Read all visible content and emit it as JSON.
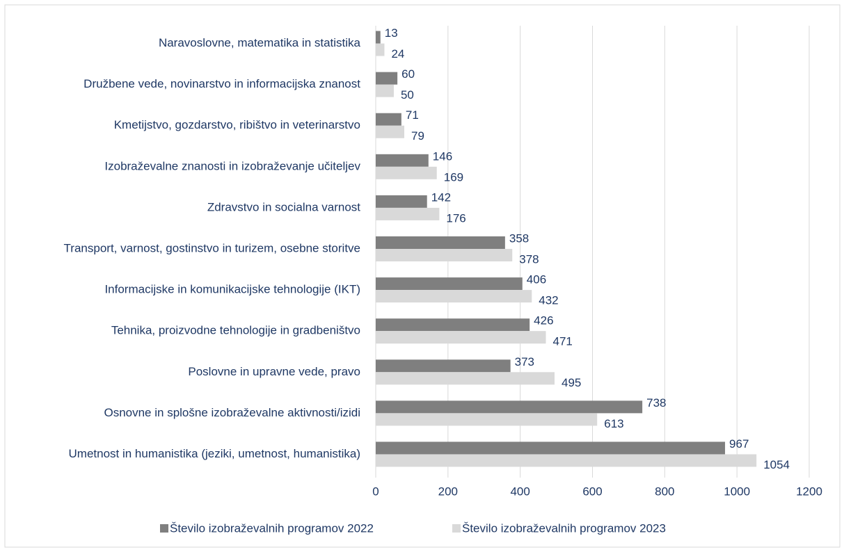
{
  "chart_data": {
    "type": "bar",
    "orientation": "horizontal",
    "categories": [
      "Naravoslovne, matematika in statistika",
      "Družbene vede, novinarstvo in informacijska znanost",
      "Kmetijstvo, gozdarstvo, ribištvo in veterinarstvo",
      "Izobraževalne znanosti in izobraževanje učiteljev",
      "Zdravstvo in socialna varnost",
      "Transport, varnost, gostinstvo in turizem, osebne storitve",
      "Informacijske in komunikacijske tehnologije (IKT)",
      "Tehnika, proizvodne tehnologije in gradbeništvo",
      "Poslovne in upravne vede, pravo",
      "Osnovne in splošne izobraževalne aktivnosti/izidi",
      "Umetnost in humanistika (jeziki, umetnost, humanistika)"
    ],
    "series": [
      {
        "name": "Število izobraževalnih programov 2022",
        "color": "#7f7f7f",
        "values": [
          13,
          60,
          71,
          146,
          142,
          358,
          406,
          426,
          373,
          738,
          967
        ]
      },
      {
        "name": "Število izobraževalnih programov 2023",
        "color": "#d9d9d9",
        "values": [
          24,
          50,
          79,
          169,
          176,
          378,
          432,
          471,
          495,
          613,
          1054
        ]
      }
    ],
    "xlim": [
      0,
      1200
    ],
    "xticks": [
      0,
      200,
      400,
      600,
      800,
      1000,
      1200
    ],
    "grid": true,
    "legend": "bottom"
  }
}
